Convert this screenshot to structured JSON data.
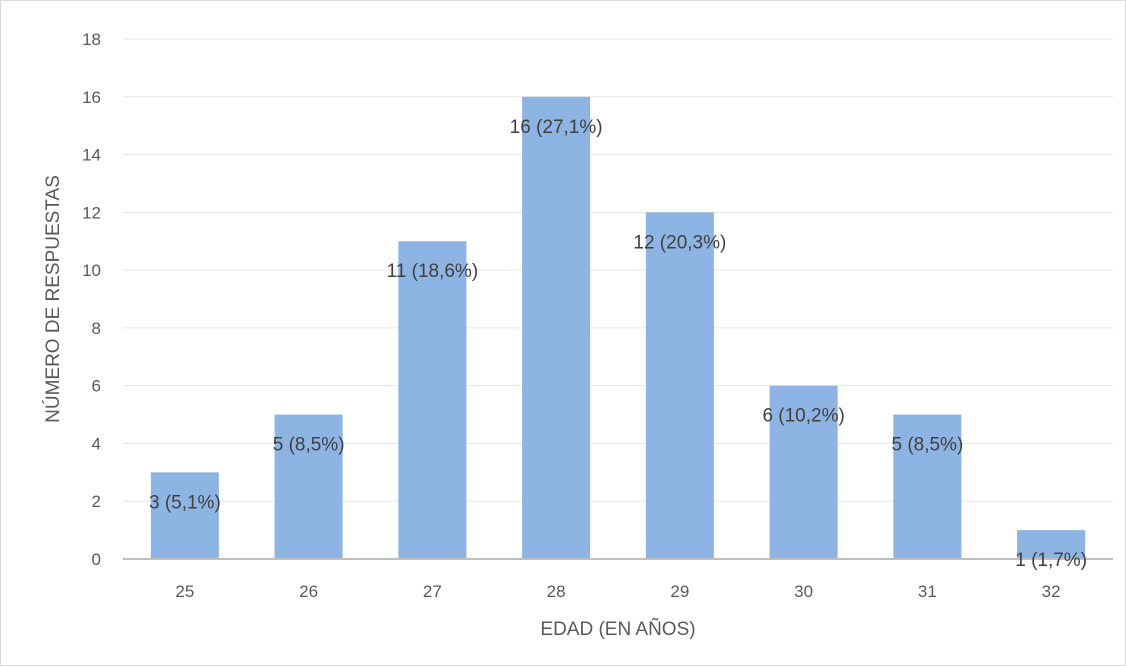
{
  "chart_data": {
    "type": "bar",
    "categories": [
      "25",
      "26",
      "27",
      "28",
      "29",
      "30",
      "31",
      "32"
    ],
    "values": [
      3,
      5,
      11,
      16,
      12,
      6,
      5,
      1
    ],
    "data_labels": [
      "3 (5,1%)",
      "5 (8,5%)",
      "11 (18,6%)",
      "16 (27,1%)",
      "12 (20,3%)",
      "6 (10,2%)",
      "5 (8,5%)",
      "1 (1,7%)"
    ],
    "xlabel": "EDAD (EN AÑOS)",
    "ylabel": "NÚMERO DE RESPUESTAS",
    "ylim": [
      0,
      18
    ],
    "yticks": [
      "0",
      "2",
      "4",
      "6",
      "8",
      "10",
      "12",
      "14",
      "16",
      "18"
    ],
    "grid": true,
    "legend": "none",
    "colors": {
      "bar": "#8db4e2",
      "grid": "#e6e6e6",
      "axis": "#bfbfbf",
      "text": "#595959"
    }
  }
}
